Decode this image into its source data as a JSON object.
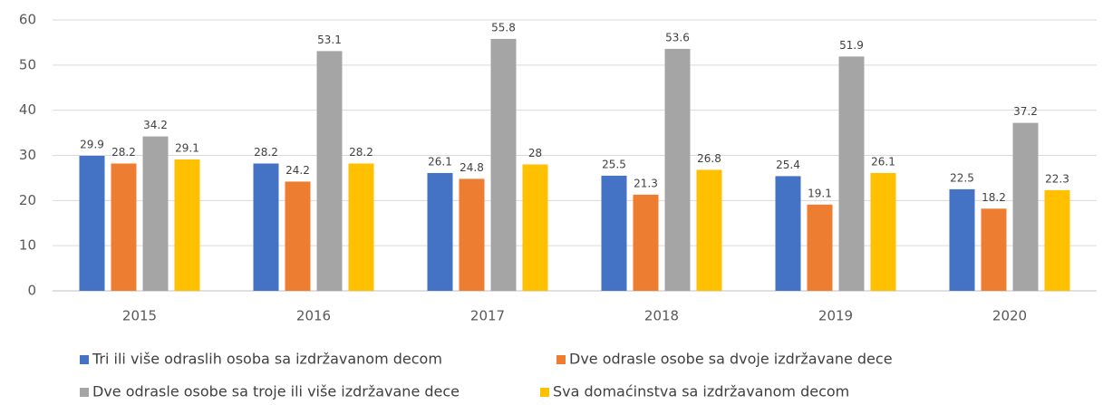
{
  "chart_data": {
    "type": "bar",
    "categories": [
      "2015",
      "2016",
      "2017",
      "2018",
      "2019",
      "2020"
    ],
    "series": [
      {
        "name": "Tri ili više odraslih osoba sa izdržavanom decom",
        "color": "#4472c4",
        "values": [
          29.9,
          28.2,
          26.1,
          25.5,
          25.4,
          22.5
        ]
      },
      {
        "name": "Dve odrasle osobe sa dvoje izdržavane dece",
        "color": "#ed7d31",
        "values": [
          28.2,
          24.2,
          24.8,
          21.3,
          19.1,
          18.2
        ]
      },
      {
        "name": "Dve odrasle osobe sa troje ili više izdržavane dece",
        "color": "#a5a5a5",
        "values": [
          34.2,
          53.1,
          55.8,
          53.6,
          51.9,
          37.2
        ]
      },
      {
        "name": "Sva domaćinstva sa izdržavanom decom",
        "color": "#ffc000",
        "values": [
          29.1,
          28.2,
          28,
          26.8,
          26.1,
          22.3
        ]
      }
    ],
    "ylim": [
      0,
      60
    ],
    "yticks": [
      0,
      10,
      20,
      30,
      40,
      50,
      60
    ],
    "grid": true,
    "legend": "bottom"
  }
}
